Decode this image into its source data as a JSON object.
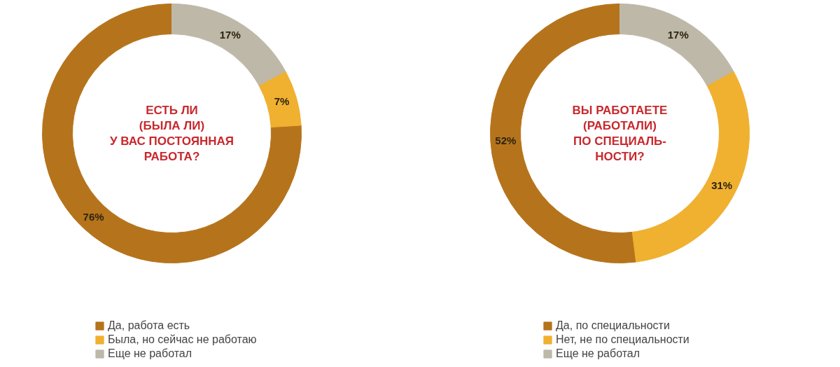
{
  "chart_data": [
    {
      "type": "donut",
      "title": "ЕСТЬ ЛИ\n(БЫЛА ЛИ)\nУ ВАС ПОСТОЯННАЯ\nРАБОТА?",
      "categories": [
        "Да, работа есть",
        "Была, но сейчас не работаю",
        "Еще не работал"
      ],
      "values": [
        76,
        7,
        17
      ],
      "colors": [
        "#b5741c",
        "#f0b030",
        "#bdb8a8"
      ],
      "value_labels": [
        "76%",
        "7%",
        "17%"
      ],
      "legend": "bottom"
    },
    {
      "type": "donut",
      "title": "ВЫ РАБОТАЕТЕ\n(РАБОТАЛИ)\nПО СПЕЦИАЛЬ-\nНОСТИ?",
      "categories": [
        "Да, по специальности",
        "Нет, не по специальности",
        "Еще не работал"
      ],
      "values": [
        52,
        31,
        17
      ],
      "colors": [
        "#b5741c",
        "#f0b030",
        "#bdb8a8"
      ],
      "value_labels": [
        "52%",
        "31%",
        "17%"
      ],
      "legend": "bottom"
    }
  ]
}
